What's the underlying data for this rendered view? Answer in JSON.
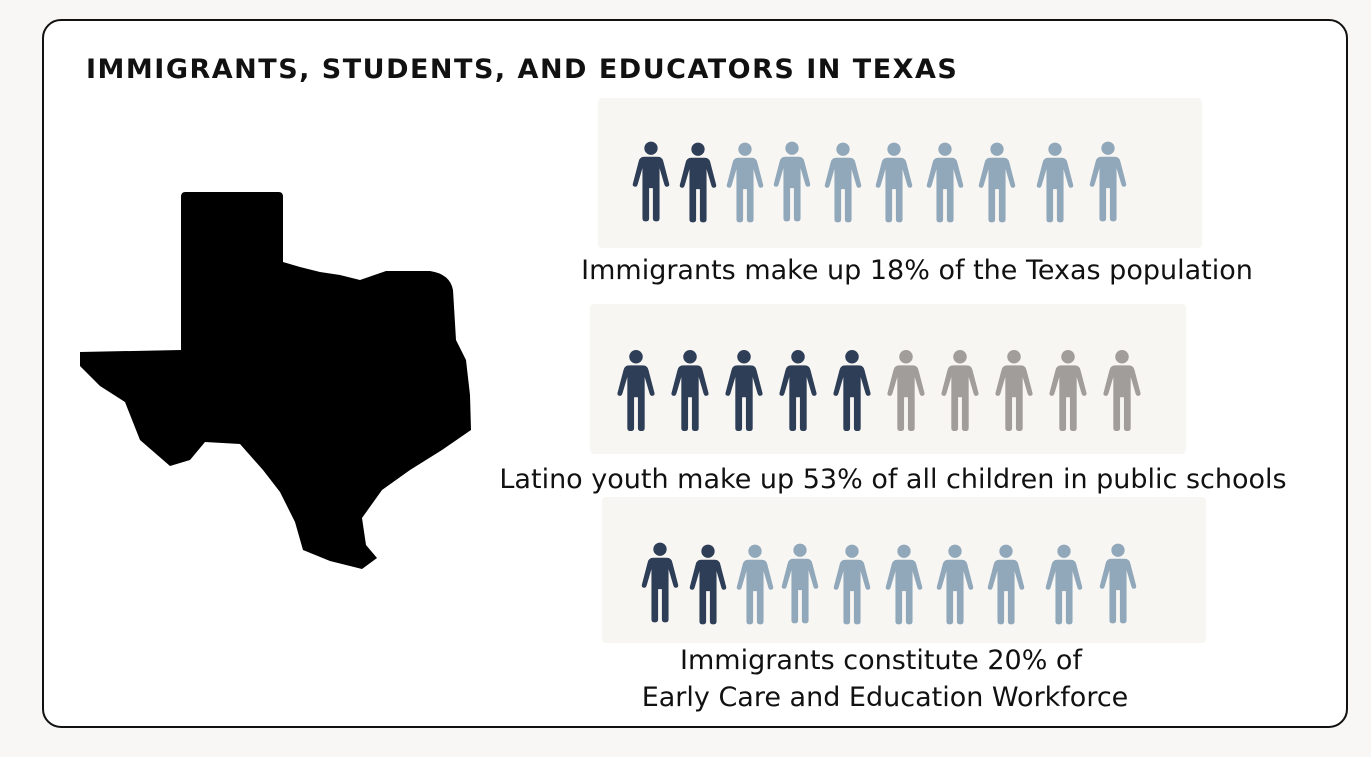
{
  "header": {
    "title": "IMMIGRANTS, STUDENTS, AND EDUCATORS IN TEXAS"
  },
  "panels": [
    {
      "caption": [
        "Immigrants make up 18% of the Texas population"
      ]
    },
    {
      "caption": [
        "Latino youth make up 53% of all children in public schools"
      ]
    },
    {
      "caption": [
        "Immigrants constitute 20% of",
        "Early Care and Education Workforce"
      ]
    }
  ]
}
